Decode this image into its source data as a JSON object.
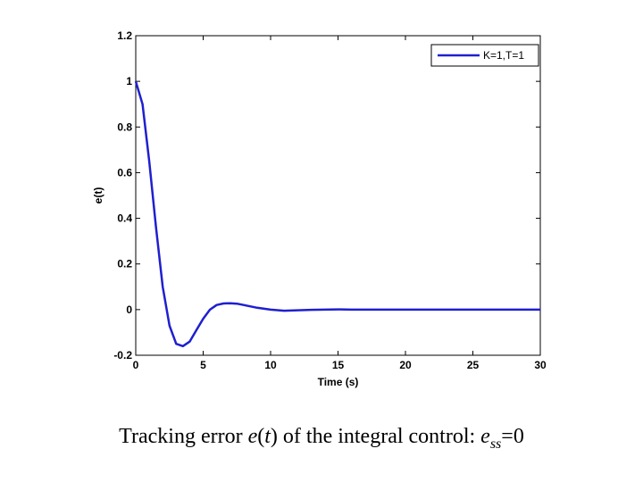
{
  "chart_data": {
    "type": "line",
    "title": "",
    "xlabel": "Time (s)",
    "ylabel": "e(t)",
    "xlim": [
      0,
      30
    ],
    "ylim": [
      -0.2,
      1.2
    ],
    "xticks": [
      0,
      5,
      10,
      15,
      20,
      25,
      30
    ],
    "yticks": [
      -0.2,
      0,
      0.2,
      0.4,
      0.6,
      0.8,
      1,
      1.2
    ],
    "xtick_labels": [
      "0",
      "5",
      "10",
      "15",
      "20",
      "25",
      "30"
    ],
    "ytick_labels": [
      "-0.2",
      "0",
      "0.2",
      "0.4",
      "0.6",
      "0.8",
      "1",
      "1.2"
    ],
    "grid": false,
    "legend_position": "top-right",
    "series": [
      {
        "name": "K=1,T=1",
        "color": "#1f1fd0",
        "x": [
          0,
          0.5,
          1.0,
          1.5,
          2.0,
          2.5,
          3.0,
          3.5,
          4.0,
          4.5,
          5.0,
          5.5,
          6.0,
          6.5,
          7.0,
          7.5,
          8.0,
          9.0,
          10.0,
          11.0,
          12.0,
          13.0,
          14.0,
          15.0,
          16.0,
          18.0,
          20.0,
          22.0,
          25.0,
          28.0,
          30.0
        ],
        "y": [
          1.0,
          0.9,
          0.65,
          0.36,
          0.1,
          -0.07,
          -0.15,
          -0.16,
          -0.14,
          -0.09,
          -0.04,
          0.0,
          0.02,
          0.027,
          0.028,
          0.026,
          0.02,
          0.008,
          0.0,
          -0.005,
          -0.003,
          -0.001,
          0.0,
          0.001,
          0.0,
          0.0,
          0.0,
          0.0,
          0.0,
          0.0,
          0.0
        ]
      }
    ]
  },
  "caption": {
    "prefix": "Tracking error ",
    "var_e": "e",
    "paren_open": "(",
    "var_t": "t",
    "paren_close": ")",
    "middle": " of the integral control: ",
    "var_e2": "e",
    "subscript": "ss",
    "suffix": "=0"
  }
}
